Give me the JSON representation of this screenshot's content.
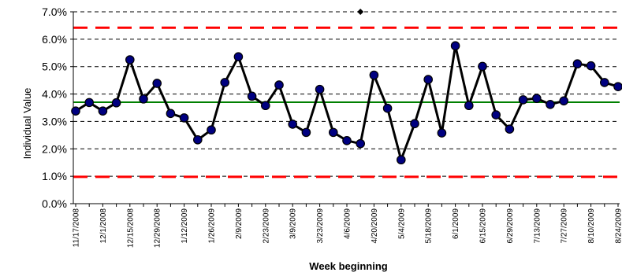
{
  "chart_data": {
    "type": "line",
    "title": "",
    "xlabel": "Week beginning",
    "ylabel": "Individual Value",
    "ylim": [
      0,
      7
    ],
    "y_ticks": [
      "0.0%",
      "1.0%",
      "2.0%",
      "3.0%",
      "4.0%",
      "5.0%",
      "6.0%",
      "7.0%"
    ],
    "y_tick_values": [
      0,
      1,
      2,
      3,
      4,
      5,
      6,
      7
    ],
    "grid": true,
    "legend": "none",
    "x_tick_labels": [
      "11/17/2008",
      "12/1/2008",
      "12/15/2008",
      "12/29/2008",
      "1/12/2009",
      "1/26/2009",
      "2/9/2009",
      "2/23/2009",
      "3/9/2009",
      "3/23/2009",
      "4/6/2009",
      "4/20/2009",
      "5/4/2009",
      "5/18/2009",
      "6/1/2009",
      "6/15/2009",
      "6/29/2009",
      "7/13/2009",
      "7/27/2009",
      "8/10/2009",
      "8/24/2009"
    ],
    "weeks": [
      "11/17/2008",
      "11/24/2008",
      "12/1/2008",
      "12/8/2008",
      "12/15/2008",
      "12/22/2008",
      "12/29/2008",
      "1/5/2009",
      "1/12/2009",
      "1/19/2009",
      "1/26/2009",
      "2/2/2009",
      "2/9/2009",
      "2/16/2009",
      "2/23/2009",
      "3/2/2009",
      "3/9/2009",
      "3/16/2009",
      "3/23/2009",
      "3/30/2009",
      "4/6/2009",
      "4/13/2009",
      "4/20/2009",
      "4/27/2009",
      "5/4/2009",
      "5/11/2009",
      "5/18/2009",
      "5/25/2009",
      "6/1/2009",
      "6/8/2009",
      "6/15/2009",
      "6/22/2009",
      "6/29/2009",
      "7/6/2009",
      "7/13/2009",
      "7/20/2009",
      "7/27/2009",
      "8/3/2009",
      "8/10/2009",
      "8/17/2009",
      "8/24/2009"
    ],
    "series": [
      {
        "values": [
          3.38,
          3.69,
          3.38,
          3.68,
          5.25,
          3.82,
          4.39,
          3.29,
          3.13,
          2.33,
          2.69,
          4.42,
          5.36,
          3.92,
          3.58,
          4.33,
          2.9,
          2.6,
          4.17,
          2.6,
          2.3,
          2.19,
          4.69,
          3.48,
          1.6,
          2.92,
          4.53,
          2.58,
          5.76,
          3.58,
          5.01,
          3.24,
          2.72,
          3.79,
          3.84,
          3.62,
          3.75,
          5.1,
          5.03,
          4.42,
          4.27
        ],
        "line_color": "#000000",
        "marker_color": "#000080"
      }
    ],
    "center_line": {
      "value": 3.7,
      "color": "#008000"
    },
    "control_limits": {
      "upper": 6.42,
      "lower": 0.98,
      "color": "#ff0000"
    },
    "marker_annotation": {
      "week": "4/13/2009",
      "value": 7.0,
      "symbol": "diamond"
    }
  }
}
